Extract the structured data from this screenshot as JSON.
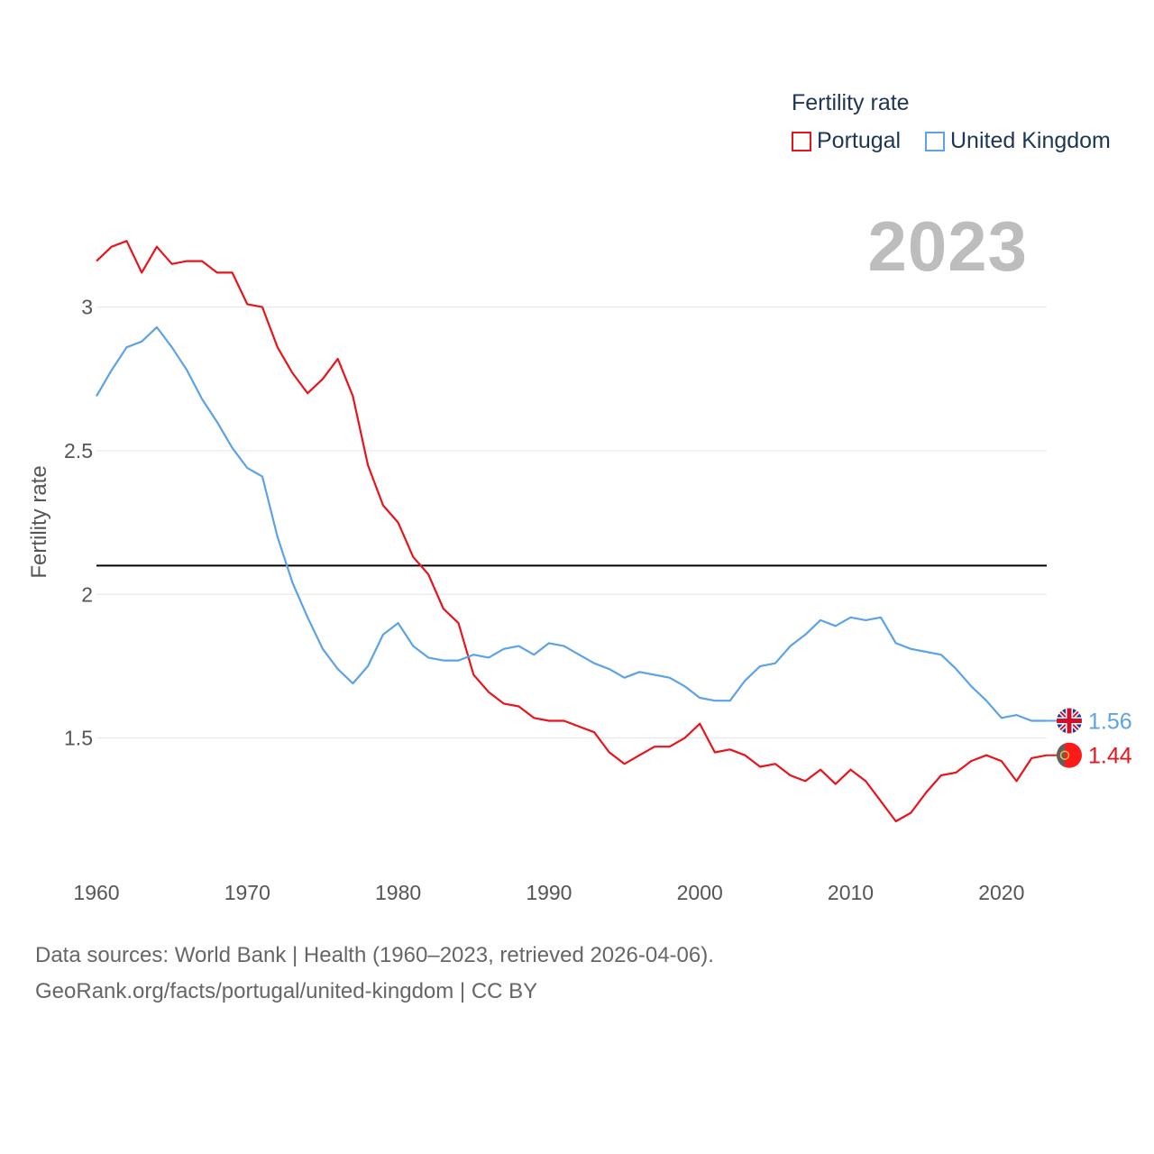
{
  "chart_data": {
    "type": "line",
    "title": "Fertility rate",
    "ylabel": "Fertility rate",
    "xlabel": "",
    "current_year_label": "2023",
    "xlim": [
      1960,
      2023
    ],
    "ylim": [
      1.05,
      3.3
    ],
    "y_ticks": [
      1.5,
      2,
      2.5,
      3
    ],
    "y_tick_labels": [
      "1.5",
      "2",
      "2.5",
      "3"
    ],
    "x_ticks": [
      1960,
      1970,
      1980,
      1990,
      2000,
      2010,
      2020
    ],
    "x_tick_labels": [
      "1960",
      "1970",
      "1980",
      "1990",
      "2000",
      "2010",
      "2020"
    ],
    "reference_line": 2.1,
    "x": [
      1960,
      1961,
      1962,
      1963,
      1964,
      1965,
      1966,
      1967,
      1968,
      1969,
      1970,
      1971,
      1972,
      1973,
      1974,
      1975,
      1976,
      1977,
      1978,
      1979,
      1980,
      1981,
      1982,
      1983,
      1984,
      1985,
      1986,
      1987,
      1988,
      1989,
      1990,
      1991,
      1992,
      1993,
      1994,
      1995,
      1996,
      1997,
      1998,
      1999,
      2000,
      2001,
      2002,
      2003,
      2004,
      2005,
      2006,
      2007,
      2008,
      2009,
      2010,
      2011,
      2012,
      2013,
      2014,
      2015,
      2016,
      2017,
      2018,
      2019,
      2020,
      2021,
      2022,
      2023
    ],
    "series": [
      {
        "name": "Portugal",
        "color": "#e8141c",
        "end_label": "1.44",
        "values": [
          3.16,
          3.21,
          3.23,
          3.12,
          3.21,
          3.15,
          3.16,
          3.16,
          3.12,
          3.12,
          3.01,
          3.0,
          2.86,
          2.77,
          2.7,
          2.75,
          2.82,
          2.69,
          2.45,
          2.31,
          2.25,
          2.13,
          2.07,
          1.95,
          1.9,
          1.72,
          1.66,
          1.62,
          1.61,
          1.57,
          1.56,
          1.56,
          1.54,
          1.52,
          1.45,
          1.41,
          1.44,
          1.47,
          1.47,
          1.5,
          1.55,
          1.45,
          1.46,
          1.44,
          1.4,
          1.41,
          1.37,
          1.35,
          1.39,
          1.34,
          1.39,
          1.35,
          1.28,
          1.21,
          1.24,
          1.31,
          1.37,
          1.38,
          1.42,
          1.44,
          1.42,
          1.35,
          1.43,
          1.44
        ]
      },
      {
        "name": "United Kingdom",
        "color": "#5ba3e6",
        "end_label": "1.56",
        "values": [
          2.69,
          2.78,
          2.86,
          2.88,
          2.93,
          2.86,
          2.78,
          2.68,
          2.6,
          2.51,
          2.44,
          2.41,
          2.2,
          2.04,
          1.92,
          1.81,
          1.74,
          1.69,
          1.75,
          1.86,
          1.9,
          1.82,
          1.78,
          1.77,
          1.77,
          1.79,
          1.78,
          1.81,
          1.82,
          1.79,
          1.83,
          1.82,
          1.79,
          1.76,
          1.74,
          1.71,
          1.73,
          1.72,
          1.71,
          1.68,
          1.64,
          1.63,
          1.63,
          1.7,
          1.75,
          1.76,
          1.82,
          1.86,
          1.91,
          1.89,
          1.92,
          1.91,
          1.92,
          1.83,
          1.81,
          1.8,
          1.79,
          1.74,
          1.68,
          1.63,
          1.57,
          1.58,
          1.56,
          1.56
        ]
      }
    ]
  },
  "legend": {
    "title": "Fertility rate",
    "items": [
      {
        "label": "Portugal",
        "color": "#e8141c"
      },
      {
        "label": "United Kingdom",
        "color": "#5ba3e6"
      }
    ]
  },
  "footer": {
    "line1": "Data sources: World Bank | Health (1960–2023, retrieved 2026-04-06).",
    "line2": "GeoRank.org/facts/portugal/united-kingdom | CC BY"
  },
  "flags": {
    "portugal": "portugal-flag-icon",
    "united_kingdom": "united-kingdom-flag-icon"
  }
}
